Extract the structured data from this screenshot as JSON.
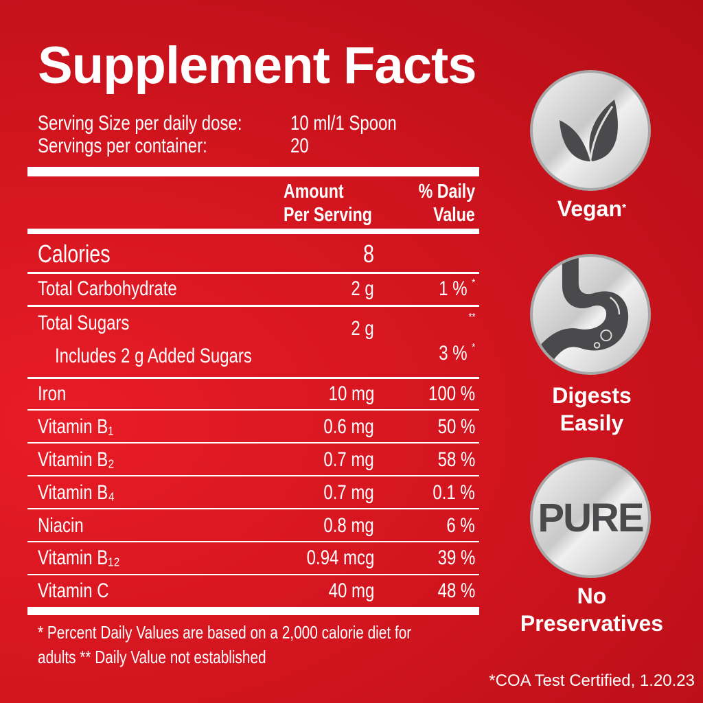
{
  "title": "Supplement Facts",
  "serving": {
    "size_label": "Serving Size per daily dose:",
    "size_value": "10 ml/1 Spoon",
    "per_container_label": "Servings per container:",
    "per_container_value": "20"
  },
  "header": {
    "amount_line1": "Amount",
    "amount_line2": "Per Serving",
    "dv_line1": "% Daily",
    "dv_line2": "Value"
  },
  "calories": {
    "label": "Calories",
    "amount": "8"
  },
  "rows": [
    {
      "name": "Total Carbohydrate",
      "amount": "2 g",
      "dv": "1 %",
      "mark": "*"
    },
    {
      "name": "Total Sugars",
      "amount": "2 g",
      "dv": "",
      "mark": "**"
    },
    {
      "name": "Includes 2 g Added Sugars",
      "amount": "",
      "dv": "3 %",
      "mark": "*"
    },
    {
      "name": "Iron",
      "amount": "10 mg",
      "dv": "100 %"
    },
    {
      "name": "Vitamin B₁",
      "amount": "0.6 mg",
      "dv": "50 %"
    },
    {
      "name": "Vitamin B₂",
      "amount": "0.7 mg",
      "dv": "58 %"
    },
    {
      "name": "Vitamin B₄",
      "amount": "0.7 mg",
      "dv": "0.1 %"
    },
    {
      "name": "Niacin",
      "amount": "0.8 mg",
      "dv": "6 %"
    },
    {
      "name": "Vitamin B₁₂",
      "amount": "0.94 mcg",
      "dv": "39 %"
    },
    {
      "name": "Vitamin C",
      "amount": "40 mg",
      "dv": "48 %"
    }
  ],
  "footnote": {
    "line1": "* Percent Daily Values are based on a 2,000 calorie diet for",
    "line2": "adults  ** Daily Value not established"
  },
  "badges": [
    {
      "icon": "leaf-icon",
      "label": "Vegan",
      "mark": "*"
    },
    {
      "icon": "stomach-icon",
      "label_line1": "Digests",
      "label_line2": "Easily"
    },
    {
      "icon_text": "PURE",
      "label_line1": "No",
      "label_line2": "Preservatives"
    }
  ],
  "certification": "*COA Test Certified, 1.20.23",
  "colors": {
    "background": "#d3151f",
    "badge_icon": "#4a4a4c",
    "text": "#ffffff"
  }
}
